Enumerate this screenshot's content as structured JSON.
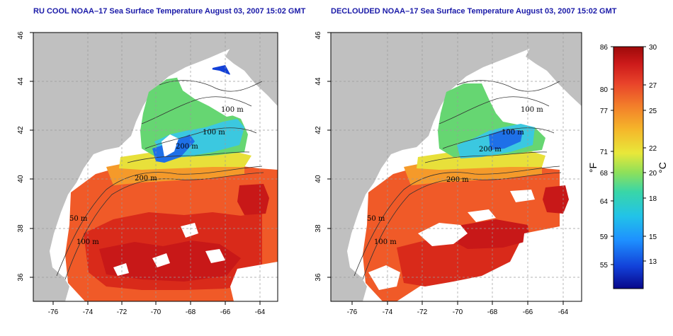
{
  "panels": [
    {
      "id": "left",
      "title": "RU COOL NOAA–17 Sea Surface Temperature August 03, 2007 15:02 GMT",
      "x_ticks": [
        "-76",
        "-74",
        "-72",
        "-70",
        "-68",
        "-66",
        "-64"
      ],
      "y_ticks": [
        "36",
        "38",
        "40",
        "42",
        "44",
        "46"
      ],
      "contour_labels": [
        "100 m",
        "100 m",
        "200 m",
        "200 m",
        "50 m",
        "100 m"
      ]
    },
    {
      "id": "right",
      "title": "DECLOUDED NOAA–17 Sea Surface Temperature August 03, 2007 15:02 GMT",
      "x_ticks": [
        "-76",
        "-74",
        "-72",
        "-70",
        "-68",
        "-66",
        "-64"
      ],
      "y_ticks": [
        "36",
        "38",
        "40",
        "42",
        "44",
        "46"
      ],
      "contour_labels": [
        "100 m",
        "100 m",
        "200 m",
        "200 m",
        "50 m",
        "100 m"
      ]
    }
  ],
  "colorbar": {
    "fahrenheit_ticks": [
      "86",
      "80",
      "77",
      "71",
      "68",
      "64",
      "59",
      "55"
    ],
    "celsius_ticks": [
      "30",
      "27",
      "25",
      "22",
      "20",
      "18",
      "15",
      "13"
    ],
    "fahrenheit_unit": "°F",
    "celsius_unit": "°C",
    "colors": [
      "#08088a",
      "#1240d8",
      "#1e90ff",
      "#22c3e8",
      "#39d6a8",
      "#8ee05a",
      "#e8e83a",
      "#f5b52a",
      "#f3812a",
      "#e8422a",
      "#cc1a1a",
      "#9e0a0a"
    ]
  },
  "colors": {
    "land": "#c0c0c0",
    "title": "#1a1aa8",
    "grid": "#9a9a9a"
  }
}
